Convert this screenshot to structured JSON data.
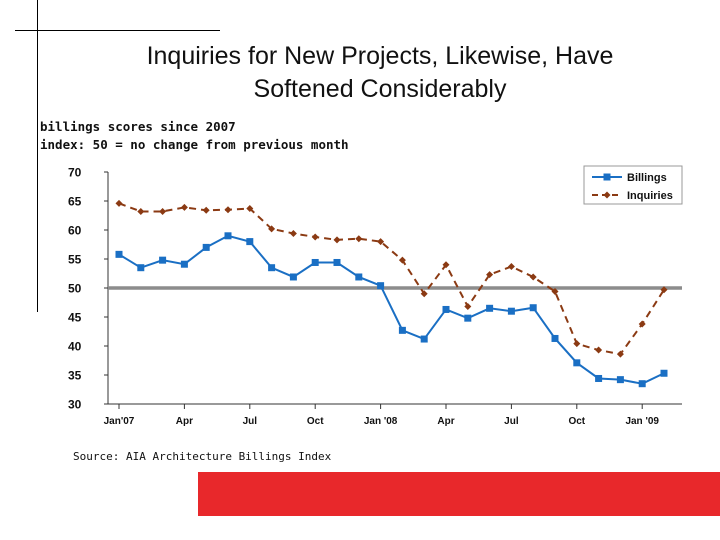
{
  "title_line1": "Inquiries for New Projects, Likewise, Have",
  "title_line2": "Softened Considerably",
  "subtitle_line1": "billings scores since 2007",
  "subtitle_line2": "index: 50 = no change from previous month",
  "source": "Source: AIA Architecture Billings Index",
  "colors": {
    "billings": "#1a6fc4",
    "inquiries": "#8b3a13",
    "reference": "#8c8c8c",
    "accent_bar": "#e8282b"
  },
  "chart_data": {
    "type": "line",
    "ylim": [
      30,
      70
    ],
    "yticks": [
      30,
      35,
      40,
      45,
      50,
      55,
      60,
      65,
      70
    ],
    "reference_line": 50,
    "grid": false,
    "legend_position": "top-right",
    "x_tick_labels": [
      "Jan'07",
      "Apr",
      "Jul",
      "Oct",
      "Jan '08",
      "Apr",
      "Jul",
      "Oct",
      "Jan '09"
    ],
    "x_tick_indices": [
      0,
      3,
      6,
      9,
      12,
      15,
      18,
      21,
      24
    ],
    "series": [
      {
        "name": "Billings",
        "style": "solid-square",
        "values": [
          55.8,
          53.5,
          54.8,
          54.1,
          57.0,
          59.0,
          58.0,
          53.5,
          51.9,
          54.4,
          54.4,
          51.9,
          50.4,
          42.7,
          41.2,
          46.3,
          44.8,
          46.5,
          46.0,
          46.6,
          41.3,
          37.1,
          34.4,
          34.2,
          33.5,
          35.3
        ]
      },
      {
        "name": "Inquiries",
        "style": "dashed-diamond",
        "values": [
          64.6,
          63.2,
          63.2,
          63.9,
          63.4,
          63.5,
          63.7,
          60.2,
          59.4,
          58.8,
          58.3,
          58.5,
          58.0,
          54.8,
          49.0,
          54.0,
          46.8,
          52.3,
          53.7,
          51.9,
          49.4,
          40.4,
          39.3,
          38.6,
          43.8,
          49.7
        ]
      }
    ]
  }
}
